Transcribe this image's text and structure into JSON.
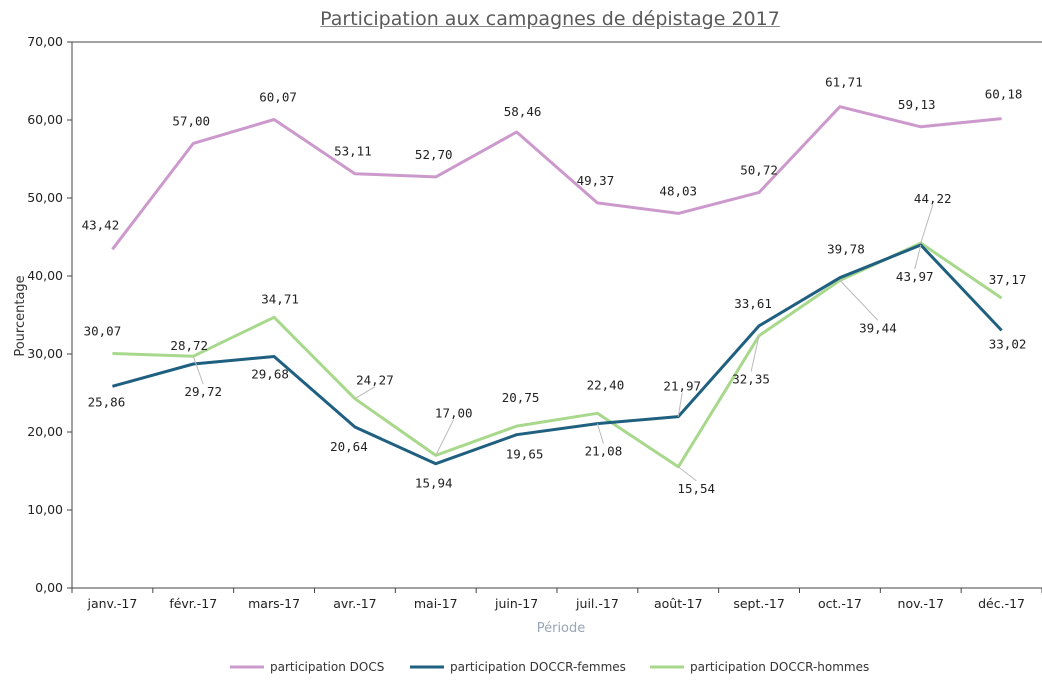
{
  "chart_data": {
    "type": "line",
    "title": "Participation aux campagnes de dépistage 2017",
    "xlabel": "Période",
    "ylabel": "Pourcentage",
    "categories": [
      "janv.-17",
      "févr.-17",
      "mars-17",
      "avr.-17",
      "mai-17",
      "juin-17",
      "juil.-17",
      "août-17",
      "sept.-17",
      "oct.-17",
      "nov.-17",
      "déc.-17"
    ],
    "ylim": [
      0,
      70
    ],
    "yticks": [
      "0,00",
      "10,00",
      "20,00",
      "30,00",
      "40,00",
      "50,00",
      "60,00",
      "70,00"
    ],
    "grid": false,
    "legend_position": "bottom",
    "series": [
      {
        "name": "participation DOCS",
        "color": "#cc99cc",
        "values": [
          43.42,
          57.0,
          60.07,
          53.11,
          52.7,
          58.46,
          49.37,
          48.03,
          50.72,
          61.71,
          59.13,
          60.18
        ],
        "labels": [
          "43,42",
          "57,00",
          "60,07",
          "53,11",
          "52,70",
          "58,46",
          "49,37",
          "48,03",
          "50,72",
          "61,71",
          "59,13",
          "60,18"
        ]
      },
      {
        "name": "participation DOCCR-femmes",
        "color": "#1f6080",
        "values": [
          25.86,
          28.72,
          29.68,
          20.64,
          15.94,
          19.65,
          21.08,
          21.97,
          33.61,
          39.78,
          43.97,
          33.02
        ],
        "labels": [
          "25,86",
          "28,72",
          "29,68",
          "20,64",
          "15,94",
          "19,65",
          "21,08",
          "21,97",
          "33,61",
          "39,78",
          "43,97",
          "33,02"
        ]
      },
      {
        "name": "participation DOCCR-hommes",
        "color": "#a8d88c",
        "values": [
          30.07,
          29.72,
          34.71,
          24.27,
          17.0,
          20.75,
          22.4,
          15.54,
          32.35,
          39.44,
          44.22,
          37.17
        ],
        "labels": [
          "30,07",
          "29,72",
          "34,71",
          "24,27",
          "17,00",
          "20,75",
          "22,40",
          "15,54",
          "32,35",
          "39,44",
          "44,22",
          "37,17"
        ]
      }
    ]
  }
}
